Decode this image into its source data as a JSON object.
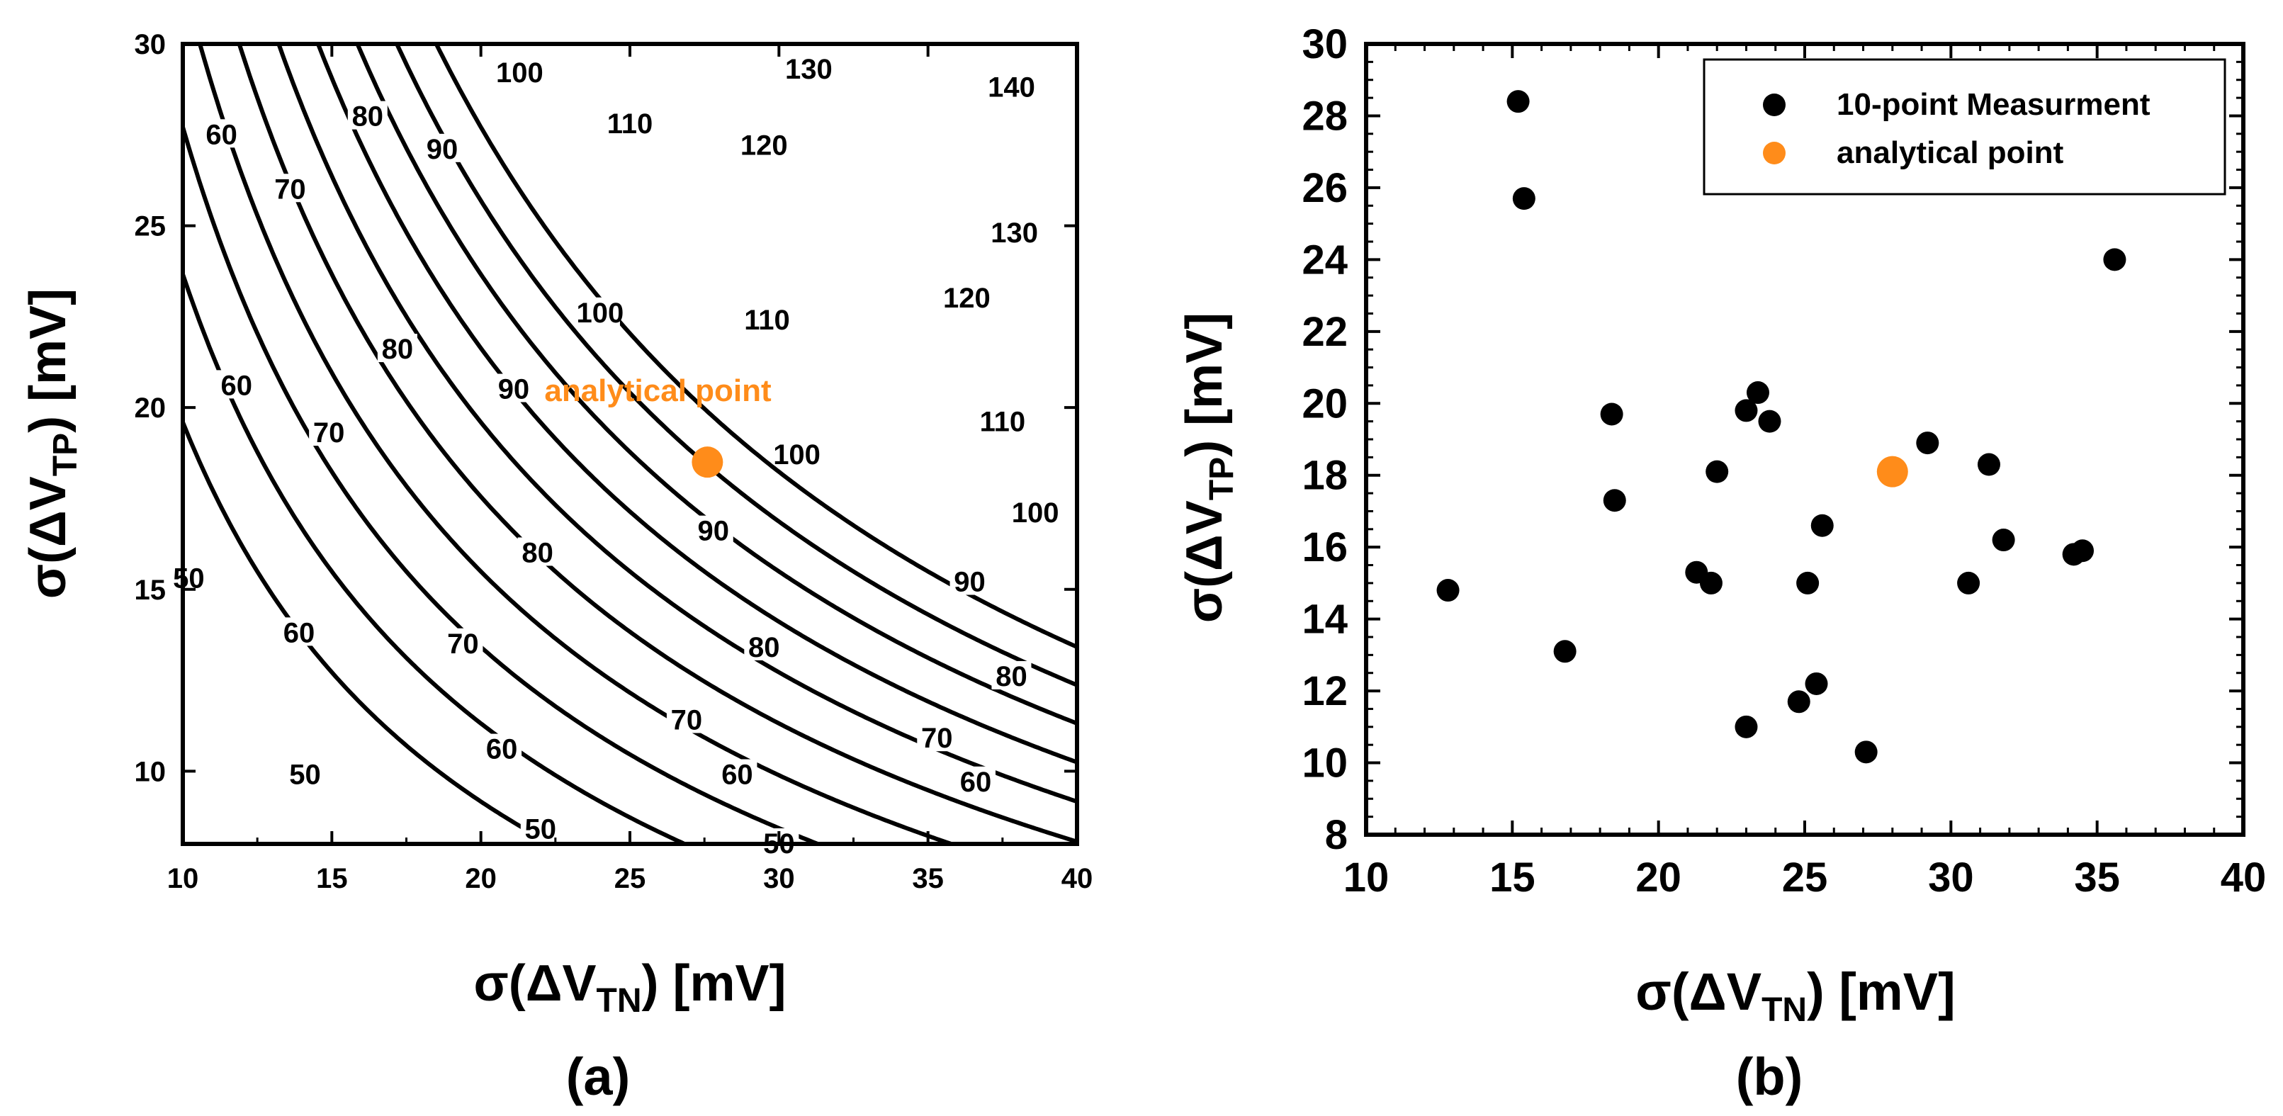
{
  "chart_data": [
    {
      "panel": "(a)",
      "type": "contour",
      "xlabel": {
        "pre": "σ(ΔV",
        "sub": "TN",
        "post": ") [mV]"
      },
      "ylabel": {
        "pre": "σ(ΔV",
        "sub": "TP",
        "post": ") [mV]"
      },
      "xlim": [
        10,
        40
      ],
      "ylim": [
        8,
        30
      ],
      "xticks": [
        10,
        15,
        20,
        25,
        30,
        35,
        40
      ],
      "yticks": [
        10,
        15,
        20,
        25,
        30
      ],
      "contour_levels": [
        50,
        60,
        70,
        80,
        90,
        100,
        110,
        120,
        130,
        140
      ],
      "contour_labels": [
        {
          "text": "100",
          "x": 21.3,
          "y": 29.2
        },
        {
          "text": "130",
          "x": 31.0,
          "y": 29.3
        },
        {
          "text": "140",
          "x": 37.8,
          "y": 28.8
        },
        {
          "text": "80",
          "x": 16.2,
          "y": 28.0
        },
        {
          "text": "110",
          "x": 25.0,
          "y": 27.8
        },
        {
          "text": "60",
          "x": 11.3,
          "y": 27.5
        },
        {
          "text": "90",
          "x": 18.7,
          "y": 27.1
        },
        {
          "text": "120",
          "x": 29.5,
          "y": 27.2
        },
        {
          "text": "70",
          "x": 13.6,
          "y": 26.0
        },
        {
          "text": "130",
          "x": 37.9,
          "y": 24.8
        },
        {
          "text": "100",
          "x": 24.0,
          "y": 22.6
        },
        {
          "text": "110",
          "x": 29.6,
          "y": 22.4
        },
        {
          "text": "120",
          "x": 36.3,
          "y": 23.0
        },
        {
          "text": "80",
          "x": 17.2,
          "y": 21.6
        },
        {
          "text": "60",
          "x": 11.8,
          "y": 20.6
        },
        {
          "text": "90",
          "x": 21.1,
          "y": 20.5
        },
        {
          "text": "110",
          "x": 37.5,
          "y": 19.6
        },
        {
          "text": "70",
          "x": 14.9,
          "y": 19.3
        },
        {
          "text": "100",
          "x": 30.6,
          "y": 18.7
        },
        {
          "text": "100",
          "x": 38.6,
          "y": 17.1
        },
        {
          "text": "90",
          "x": 27.8,
          "y": 16.6
        },
        {
          "text": "80",
          "x": 21.9,
          "y": 16.0
        },
        {
          "text": "50",
          "x": 10.2,
          "y": 15.3
        },
        {
          "text": "90",
          "x": 36.4,
          "y": 15.2
        },
        {
          "text": "60",
          "x": 13.9,
          "y": 13.8
        },
        {
          "text": "70",
          "x": 19.4,
          "y": 13.5
        },
        {
          "text": "80",
          "x": 29.5,
          "y": 13.4
        },
        {
          "text": "80",
          "x": 37.8,
          "y": 12.6
        },
        {
          "text": "70",
          "x": 26.9,
          "y": 11.4
        },
        {
          "text": "70",
          "x": 35.3,
          "y": 10.9
        },
        {
          "text": "60",
          "x": 20.7,
          "y": 10.6
        },
        {
          "text": "60",
          "x": 28.6,
          "y": 9.9
        },
        {
          "text": "50",
          "x": 14.1,
          "y": 9.9
        },
        {
          "text": "60",
          "x": 36.6,
          "y": 9.7
        },
        {
          "text": "50",
          "x": 22.0,
          "y": 8.4
        },
        {
          "text": "50",
          "x": 30.0,
          "y": 8.0
        }
      ],
      "analytical_point": {
        "x": 27.6,
        "y": 18.5,
        "label": "analytical point",
        "color": "#ff8c1a"
      }
    },
    {
      "panel": "(b)",
      "type": "scatter",
      "xlabel": {
        "pre": "σ(ΔV",
        "sub": "TN",
        "post": ") [mV]"
      },
      "ylabel": {
        "pre": "σ(ΔV",
        "sub": "TP",
        "post": ") [mV]"
      },
      "xlim": [
        10,
        40
      ],
      "ylim": [
        8,
        30
      ],
      "xticks": [
        10,
        15,
        20,
        25,
        30,
        35,
        40
      ],
      "yticks": [
        8,
        10,
        12,
        14,
        16,
        18,
        20,
        22,
        24,
        26,
        28,
        30
      ],
      "legend": [
        {
          "label": "10-point Measurment",
          "color": "#000000"
        },
        {
          "label": "analytical point",
          "color": "#ff8c1a"
        }
      ],
      "series": [
        {
          "name": "10-point Measurment",
          "color": "#000000",
          "points": [
            [
              15.2,
              28.4
            ],
            [
              15.4,
              25.7
            ],
            [
              35.6,
              24.0
            ],
            [
              12.8,
              14.8
            ],
            [
              16.8,
              13.1
            ],
            [
              18.4,
              19.7
            ],
            [
              18.5,
              17.3
            ],
            [
              21.3,
              15.3
            ],
            [
              21.8,
              15.0
            ],
            [
              22.0,
              18.1
            ],
            [
              23.0,
              19.8
            ],
            [
              23.4,
              20.3
            ],
            [
              23.8,
              19.5
            ],
            [
              23.0,
              11.0
            ],
            [
              24.8,
              11.7
            ],
            [
              25.1,
              15.0
            ],
            [
              25.4,
              12.2
            ],
            [
              25.6,
              16.6
            ],
            [
              27.1,
              10.3
            ],
            [
              29.2,
              18.9
            ],
            [
              30.6,
              15.0
            ],
            [
              31.3,
              18.3
            ],
            [
              31.8,
              16.2
            ],
            [
              34.2,
              15.8
            ],
            [
              34.5,
              15.9
            ]
          ]
        },
        {
          "name": "analytical point",
          "color": "#ff8c1a",
          "points": [
            [
              28.0,
              18.1
            ]
          ]
        }
      ]
    }
  ],
  "panel_captions": {
    "a": "(a)",
    "b": "(b)"
  }
}
